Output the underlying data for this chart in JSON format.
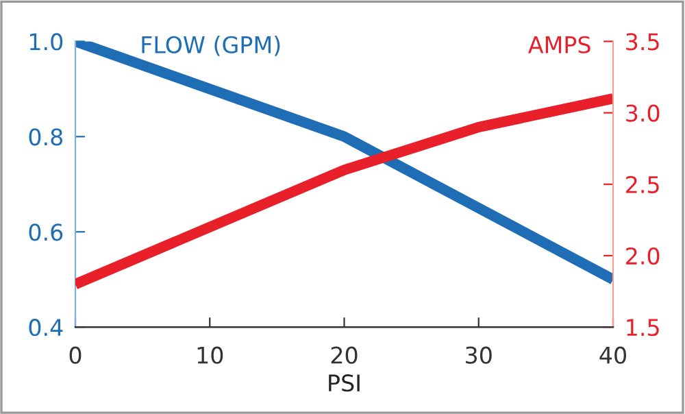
{
  "chart_data": {
    "type": "line",
    "xlabel": "PSI",
    "ylabel": "FLOW (GPM)",
    "y2label": "AMPS",
    "x": [
      0,
      10,
      20,
      30,
      40
    ],
    "series": [
      {
        "color": "#1f6db5",
        "x": [
          0,
          20,
          40
        ],
        "values": [
          1.0,
          0.8,
          0.5
        ]
      },
      {
        "color": "#e8202a",
        "axis": "y2",
        "values": [
          1.8,
          2.2,
          2.6,
          2.9,
          3.1
        ]
      }
    ],
    "xlim": [
      0,
      40
    ],
    "xticks": [
      0,
      10,
      20,
      30,
      40
    ],
    "ylim": [
      0.4,
      1.0
    ],
    "yticks": [
      0.4,
      0.6,
      0.8,
      {
        "value": 1.0,
        "label": "1.0"
      }
    ],
    "y2lim": [
      1.5,
      3.5
    ],
    "y2ticks": [
      1.5,
      {
        "value": 2.0,
        "label": "2.0"
      },
      2.5,
      {
        "value": 3.0,
        "label": "3.0"
      },
      3.5
    ],
    "grid": false,
    "legend": false,
    "marker": "none",
    "line_style": "solid"
  }
}
